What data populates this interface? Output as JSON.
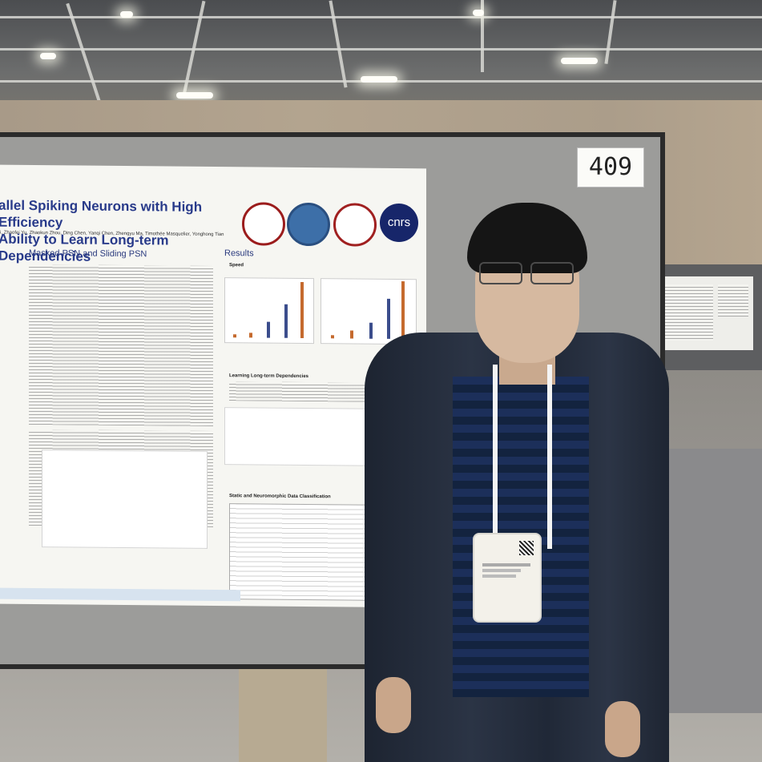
{
  "poster": {
    "title_line1": "allel Spiking Neurons with High Efficiency",
    "title_line2": "Ability to Learn Long-term Dependencies",
    "authors": "i, Zhaofei Yu, Zhaokun Zhou, Ding Chen, Yanqi Chen, Zhengyu Ma, Timothée Masquelier, Yonghong Tian",
    "section_left": "Masked PSN and Sliding PSN",
    "section_right": "Results",
    "subsection_speed": "Speed",
    "subsection_longterm": "Learning Long-term Dependencies",
    "subsection_static": "Static and Neuromorphic Data Classification",
    "logo_cnrs": "cnrs"
  },
  "board_number": "409",
  "colors": {
    "poster_title": "#283a8a",
    "jacket": "#252d3c",
    "board": "#9c9c9a"
  }
}
